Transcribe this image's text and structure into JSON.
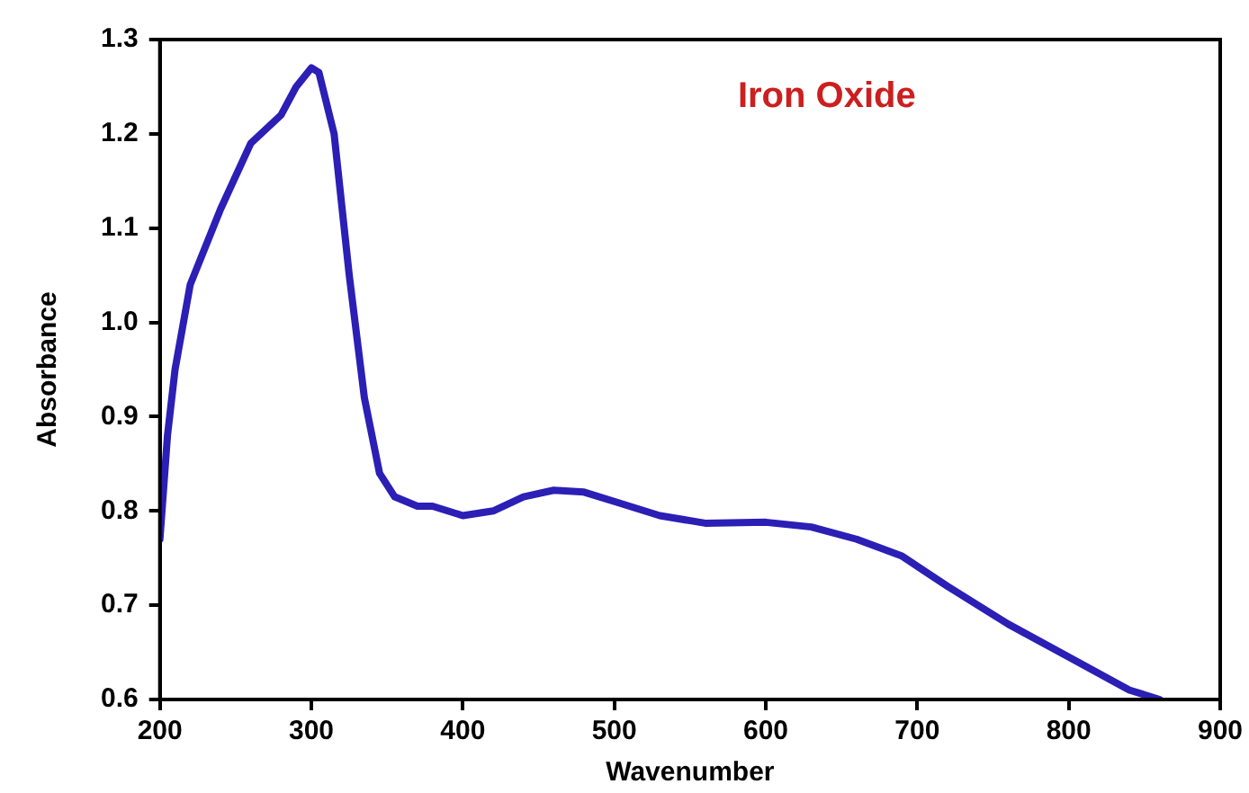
{
  "chart_data": {
    "type": "line",
    "xlabel": "Wavenumber",
    "ylabel": "Absorbance",
    "annotations": [
      "Iron Oxide"
    ],
    "xlim": [
      200,
      900
    ],
    "xticks": [
      200,
      300,
      400,
      500,
      600,
      700,
      800,
      900
    ],
    "ylim": [
      0.6,
      1.3
    ],
    "yticks": [
      0.6,
      0.7,
      0.8,
      0.9,
      {
        "value": 1,
        "label": "1.0"
      },
      1.1,
      1.2,
      1.3
    ],
    "grid": false,
    "legend": false,
    "marker": "none",
    "line_style": "solid",
    "series": [
      {
        "color": "#2b1fb5",
        "x": [
          200,
          205,
          210,
          220,
          240,
          260,
          280,
          290,
          300,
          305,
          315,
          325,
          335,
          345,
          355,
          370,
          380,
          400,
          420,
          440,
          460,
          480,
          500,
          530,
          560,
          600,
          630,
          660,
          690,
          720,
          760,
          800,
          840,
          860
        ],
        "values": [
          0.77,
          0.88,
          0.95,
          1.04,
          1.12,
          1.19,
          1.22,
          1.25,
          1.27,
          1.265,
          1.2,
          1.05,
          0.92,
          0.84,
          0.815,
          0.805,
          0.805,
          0.795,
          0.8,
          0.815,
          0.822,
          0.82,
          0.81,
          0.795,
          0.787,
          0.788,
          0.783,
          0.77,
          0.752,
          0.72,
          0.68,
          0.645,
          0.61,
          0.6
        ]
      }
    ]
  }
}
